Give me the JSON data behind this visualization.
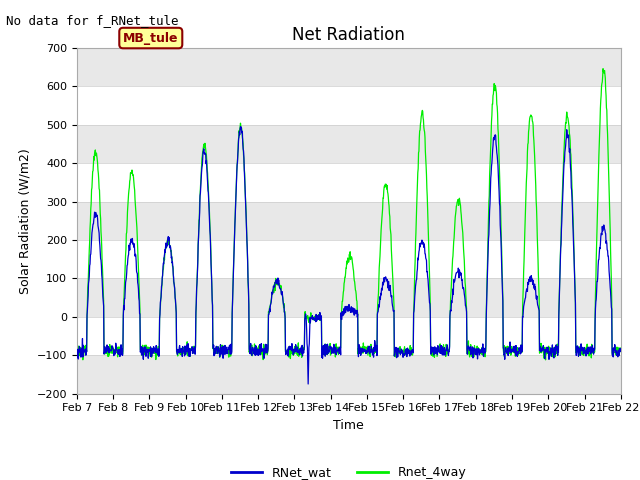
{
  "title": "Net Radiation",
  "no_data_text": "No data for f_RNet_tule",
  "mb_tule_label": "MB_tule",
  "ylabel": "Solar Radiation (W/m2)",
  "xlabel": "Time",
  "ylim": [
    -200,
    700
  ],
  "yticks": [
    -200,
    -100,
    0,
    100,
    200,
    300,
    400,
    500,
    600,
    700
  ],
  "xtick_labels": [
    "Feb 7",
    "Feb 8",
    "Feb 9",
    "Feb 10",
    "Feb 11",
    "Feb 12",
    "Feb 13",
    "Feb 14",
    "Feb 15",
    "Feb 16",
    "Feb 17",
    "Feb 18",
    "Feb 19",
    "Feb 20",
    "Feb 21",
    "Feb 22"
  ],
  "line1_color": "#0000cc",
  "line2_color": "#00ee00",
  "line1_label": "RNet_wat",
  "line2_label": "Rnet_4way",
  "background_color": "#ffffff",
  "plot_bg_color": "#e8e8e8",
  "white_band_color": "#f0f0f0",
  "legend_bg": "#ffff99",
  "legend_border": "#8b0000",
  "title_fontsize": 12,
  "label_fontsize": 9,
  "tick_fontsize": 8,
  "nodata_fontsize": 9,
  "mbtule_fontsize": 9
}
